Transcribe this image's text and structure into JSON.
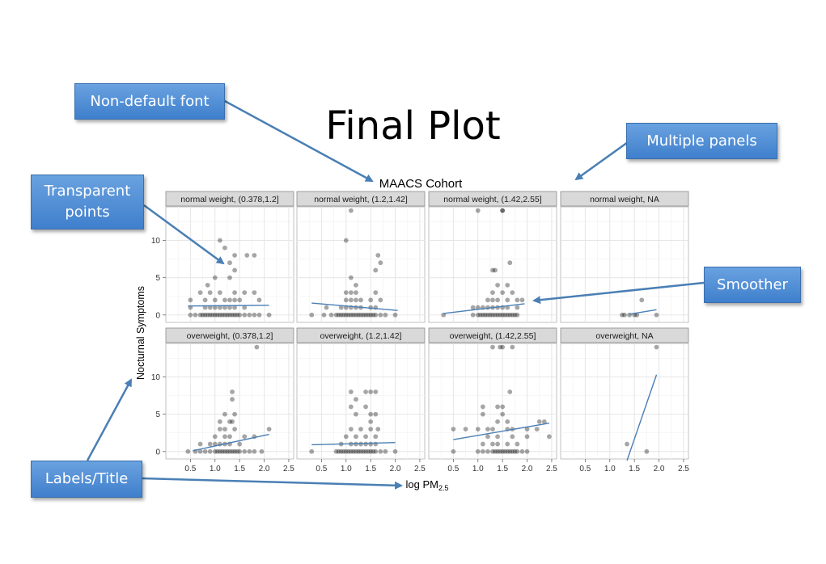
{
  "slide": {
    "title": "Final Plot"
  },
  "callouts": {
    "font": "Non-default font",
    "panels": "Multiple panels",
    "transparent": "Transparent points",
    "smoother": "Smoother",
    "labels": "Labels/Title"
  },
  "colors": {
    "callout_fill": "#4a8ad4",
    "smoother_line": "#4a7fb5",
    "strip_fill": "#d9d9d9",
    "point": "#000000"
  },
  "chart_data": {
    "type": "scatter",
    "title": "MAACS Cohort",
    "xlabel": "log PM2.5",
    "ylabel": "Nocturnal Symptoms",
    "xlim": [
      0,
      2.6
    ],
    "ylim": [
      -1,
      14.5
    ],
    "xticks": [
      "0.5",
      "1.0",
      "1.5",
      "2.0",
      "2.5"
    ],
    "yticks": [
      "0",
      "5",
      "10"
    ],
    "point_alpha": 0.35,
    "grid": true,
    "panels": [
      {
        "label": "normal weight, (0.378,1.2]",
        "smooth": [
          [
            0.45,
            1.2
          ],
          [
            2.1,
            1.3
          ]
        ],
        "points": [
          [
            0.5,
            0
          ],
          [
            0.6,
            0
          ],
          [
            0.7,
            0
          ],
          [
            0.75,
            0
          ],
          [
            0.8,
            0
          ],
          [
            0.85,
            0
          ],
          [
            0.9,
            0
          ],
          [
            0.95,
            0
          ],
          [
            1.0,
            0
          ],
          [
            1.05,
            0
          ],
          [
            1.1,
            0
          ],
          [
            1.15,
            0
          ],
          [
            1.2,
            0
          ],
          [
            1.25,
            0
          ],
          [
            1.3,
            0
          ],
          [
            1.35,
            0
          ],
          [
            1.4,
            0
          ],
          [
            1.45,
            0
          ],
          [
            1.5,
            0
          ],
          [
            1.6,
            0
          ],
          [
            1.7,
            0
          ],
          [
            1.8,
            0
          ],
          [
            1.9,
            0
          ],
          [
            2.1,
            0
          ],
          [
            0.5,
            1
          ],
          [
            0.8,
            1
          ],
          [
            0.9,
            1
          ],
          [
            1.0,
            1
          ],
          [
            1.1,
            1
          ],
          [
            1.2,
            1
          ],
          [
            1.3,
            1
          ],
          [
            1.4,
            1
          ],
          [
            1.6,
            1
          ],
          [
            0.5,
            2
          ],
          [
            0.8,
            2
          ],
          [
            1.0,
            2
          ],
          [
            1.2,
            2
          ],
          [
            1.3,
            2
          ],
          [
            1.4,
            2
          ],
          [
            1.5,
            2
          ],
          [
            1.9,
            2
          ],
          [
            0.7,
            3
          ],
          [
            0.9,
            3
          ],
          [
            1.1,
            3
          ],
          [
            1.4,
            3
          ],
          [
            1.6,
            3
          ],
          [
            1.8,
            3
          ],
          [
            0.85,
            4
          ],
          [
            1.0,
            5
          ],
          [
            1.3,
            5
          ],
          [
            1.4,
            6
          ],
          [
            1.3,
            7
          ],
          [
            1.4,
            8
          ],
          [
            1.65,
            8
          ],
          [
            1.8,
            8
          ],
          [
            1.2,
            9
          ],
          [
            1.1,
            10
          ]
        ]
      },
      {
        "label": "normal weight, (1.2,1.42]",
        "smooth": [
          [
            0.3,
            1.6
          ],
          [
            2.05,
            0.6
          ]
        ],
        "points": [
          [
            0.3,
            0
          ],
          [
            0.55,
            0
          ],
          [
            0.7,
            0
          ],
          [
            0.8,
            0
          ],
          [
            0.85,
            0
          ],
          [
            0.9,
            0
          ],
          [
            0.95,
            0
          ],
          [
            1.0,
            0
          ],
          [
            1.05,
            0
          ],
          [
            1.1,
            0
          ],
          [
            1.15,
            0
          ],
          [
            1.2,
            0
          ],
          [
            1.25,
            0
          ],
          [
            1.3,
            0
          ],
          [
            1.35,
            0
          ],
          [
            1.4,
            0
          ],
          [
            1.45,
            0
          ],
          [
            1.5,
            0
          ],
          [
            1.55,
            0
          ],
          [
            1.6,
            0
          ],
          [
            1.7,
            0
          ],
          [
            1.8,
            0
          ],
          [
            2.0,
            0
          ],
          [
            0.6,
            1
          ],
          [
            0.9,
            1
          ],
          [
            1.0,
            1
          ],
          [
            1.1,
            1
          ],
          [
            1.2,
            1
          ],
          [
            1.3,
            1
          ],
          [
            1.5,
            1
          ],
          [
            1.6,
            1
          ],
          [
            1.0,
            2
          ],
          [
            1.1,
            2
          ],
          [
            1.2,
            2
          ],
          [
            1.3,
            2
          ],
          [
            1.5,
            2
          ],
          [
            1.7,
            2
          ],
          [
            1.0,
            3
          ],
          [
            1.1,
            3
          ],
          [
            1.2,
            3
          ],
          [
            1.6,
            3
          ],
          [
            1.2,
            4
          ],
          [
            1.1,
            5
          ],
          [
            1.6,
            6
          ],
          [
            1.7,
            7
          ],
          [
            1.65,
            8
          ],
          [
            1.0,
            10
          ],
          [
            1.1,
            14
          ]
        ]
      },
      {
        "label": "normal weight, (1.42,2.55]",
        "smooth": [
          [
            0.3,
            0.2
          ],
          [
            1.95,
            1.5
          ]
        ],
        "points": [
          [
            0.3,
            0
          ],
          [
            0.9,
            0
          ],
          [
            1.0,
            0
          ],
          [
            1.05,
            0
          ],
          [
            1.1,
            0
          ],
          [
            1.15,
            0
          ],
          [
            1.2,
            0
          ],
          [
            1.25,
            0
          ],
          [
            1.3,
            0
          ],
          [
            1.35,
            0
          ],
          [
            1.4,
            0
          ],
          [
            1.45,
            0
          ],
          [
            1.5,
            0
          ],
          [
            1.55,
            0
          ],
          [
            1.6,
            0
          ],
          [
            1.65,
            0
          ],
          [
            1.7,
            0
          ],
          [
            1.75,
            0
          ],
          [
            1.8,
            0
          ],
          [
            0.9,
            1
          ],
          [
            1.0,
            1
          ],
          [
            1.1,
            1
          ],
          [
            1.2,
            1
          ],
          [
            1.3,
            1
          ],
          [
            1.4,
            1
          ],
          [
            1.5,
            1
          ],
          [
            1.6,
            1
          ],
          [
            1.8,
            1
          ],
          [
            1.2,
            2
          ],
          [
            1.3,
            2
          ],
          [
            1.4,
            2
          ],
          [
            1.6,
            2
          ],
          [
            1.8,
            2
          ],
          [
            1.9,
            2
          ],
          [
            1.3,
            3
          ],
          [
            1.5,
            3
          ],
          [
            1.7,
            3
          ],
          [
            1.4,
            4
          ],
          [
            1.6,
            4
          ],
          [
            1.3,
            6
          ],
          [
            1.35,
            6
          ],
          [
            1.65,
            7
          ],
          [
            1.0,
            14
          ],
          [
            1.5,
            14
          ],
          [
            1.5,
            14
          ]
        ]
      },
      {
        "label": "normal weight, NA",
        "smooth": [
          [
            1.4,
            0.1
          ],
          [
            1.95,
            0.7
          ]
        ],
        "points": [
          [
            1.25,
            0
          ],
          [
            1.3,
            0
          ],
          [
            1.4,
            0
          ],
          [
            1.5,
            0
          ],
          [
            1.55,
            0
          ],
          [
            1.65,
            2
          ],
          [
            1.95,
            0
          ]
        ]
      },
      {
        "label": "overweight, (0.378,1.2]",
        "smooth": [
          [
            0.55,
            0.1
          ],
          [
            2.1,
            2.3
          ]
        ],
        "points": [
          [
            0.45,
            0
          ],
          [
            0.6,
            0
          ],
          [
            0.7,
            0
          ],
          [
            0.8,
            0
          ],
          [
            0.9,
            0
          ],
          [
            1.0,
            0
          ],
          [
            1.05,
            0
          ],
          [
            1.1,
            0
          ],
          [
            1.15,
            0
          ],
          [
            1.2,
            0
          ],
          [
            1.25,
            0
          ],
          [
            1.3,
            0
          ],
          [
            1.35,
            0
          ],
          [
            1.4,
            0
          ],
          [
            1.45,
            0
          ],
          [
            1.5,
            0
          ],
          [
            1.6,
            0
          ],
          [
            1.7,
            0
          ],
          [
            1.8,
            0
          ],
          [
            1.95,
            0
          ],
          [
            0.7,
            1
          ],
          [
            0.9,
            1
          ],
          [
            1.0,
            1
          ],
          [
            1.1,
            1
          ],
          [
            1.2,
            1
          ],
          [
            1.3,
            1
          ],
          [
            1.5,
            1
          ],
          [
            1.0,
            2
          ],
          [
            1.2,
            2
          ],
          [
            1.3,
            2
          ],
          [
            1.6,
            2
          ],
          [
            1.8,
            2
          ],
          [
            1.1,
            3
          ],
          [
            1.2,
            3
          ],
          [
            1.4,
            3
          ],
          [
            2.1,
            3
          ],
          [
            1.1,
            4
          ],
          [
            1.3,
            4
          ],
          [
            1.35,
            4
          ],
          [
            1.2,
            5
          ],
          [
            1.4,
            5
          ],
          [
            1.35,
            7
          ],
          [
            1.35,
            8
          ],
          [
            1.85,
            14
          ]
        ]
      },
      {
        "label": "overweight, (1.2,1.42]",
        "smooth": [
          [
            0.3,
            0.9
          ],
          [
            2.0,
            1.2
          ]
        ],
        "points": [
          [
            0.3,
            0
          ],
          [
            0.8,
            0
          ],
          [
            0.85,
            0
          ],
          [
            0.9,
            0
          ],
          [
            0.95,
            0
          ],
          [
            1.0,
            0
          ],
          [
            1.05,
            0
          ],
          [
            1.1,
            0
          ],
          [
            1.15,
            0
          ],
          [
            1.2,
            0
          ],
          [
            1.25,
            0
          ],
          [
            1.3,
            0
          ],
          [
            1.35,
            0
          ],
          [
            1.4,
            0
          ],
          [
            1.45,
            0
          ],
          [
            1.5,
            0
          ],
          [
            1.55,
            0
          ],
          [
            1.6,
            0
          ],
          [
            1.7,
            0
          ],
          [
            1.8,
            0
          ],
          [
            2.0,
            0
          ],
          [
            0.9,
            1
          ],
          [
            1.1,
            1
          ],
          [
            1.2,
            1
          ],
          [
            1.3,
            1
          ],
          [
            1.4,
            1
          ],
          [
            1.5,
            1
          ],
          [
            1.6,
            1
          ],
          [
            1.0,
            2
          ],
          [
            1.2,
            2
          ],
          [
            1.4,
            2
          ],
          [
            1.6,
            2
          ],
          [
            1.1,
            3
          ],
          [
            1.3,
            3
          ],
          [
            1.5,
            3
          ],
          [
            1.65,
            3
          ],
          [
            1.5,
            4
          ],
          [
            1.2,
            5
          ],
          [
            1.5,
            5
          ],
          [
            1.6,
            5
          ],
          [
            1.1,
            6
          ],
          [
            1.4,
            6
          ],
          [
            1.2,
            7
          ],
          [
            1.1,
            8
          ],
          [
            1.5,
            8
          ],
          [
            1.6,
            8
          ],
          [
            1.4,
            8
          ]
        ]
      },
      {
        "label": "overweight, (1.42,2.55]",
        "smooth": [
          [
            0.5,
            1.6
          ],
          [
            2.45,
            3.8
          ]
        ],
        "points": [
          [
            0.5,
            0
          ],
          [
            1.0,
            0
          ],
          [
            1.1,
            0
          ],
          [
            1.2,
            0
          ],
          [
            1.3,
            0
          ],
          [
            1.35,
            0
          ],
          [
            1.4,
            0
          ],
          [
            1.45,
            0
          ],
          [
            1.5,
            0
          ],
          [
            1.55,
            0
          ],
          [
            1.6,
            0
          ],
          [
            1.65,
            0
          ],
          [
            1.7,
            0
          ],
          [
            1.75,
            0
          ],
          [
            1.8,
            0
          ],
          [
            1.9,
            0
          ],
          [
            2.0,
            0
          ],
          [
            1.1,
            1
          ],
          [
            1.3,
            1
          ],
          [
            1.4,
            1
          ],
          [
            1.6,
            1
          ],
          [
            1.8,
            1
          ],
          [
            1.2,
            2
          ],
          [
            1.4,
            2
          ],
          [
            1.7,
            2
          ],
          [
            2.0,
            2
          ],
          [
            2.45,
            2
          ],
          [
            0.5,
            3
          ],
          [
            0.75,
            3
          ],
          [
            1.0,
            3
          ],
          [
            1.2,
            3
          ],
          [
            1.3,
            3
          ],
          [
            1.6,
            3
          ],
          [
            1.7,
            3
          ],
          [
            2.0,
            3
          ],
          [
            2.2,
            3
          ],
          [
            1.4,
            4
          ],
          [
            1.6,
            4
          ],
          [
            2.25,
            4
          ],
          [
            2.35,
            4
          ],
          [
            1.1,
            5
          ],
          [
            1.5,
            5
          ],
          [
            1.4,
            6
          ],
          [
            1.5,
            6
          ],
          [
            1.1,
            6
          ],
          [
            1.65,
            8
          ],
          [
            1.3,
            14
          ],
          [
            1.45,
            14
          ],
          [
            1.5,
            14
          ],
          [
            1.7,
            14
          ]
        ]
      },
      {
        "label": "overweight, NA",
        "smooth": [
          [
            1.35,
            -1.2
          ],
          [
            1.95,
            10.3
          ]
        ],
        "points": [
          [
            1.35,
            1
          ],
          [
            1.75,
            0
          ],
          [
            1.95,
            14
          ]
        ]
      }
    ]
  }
}
